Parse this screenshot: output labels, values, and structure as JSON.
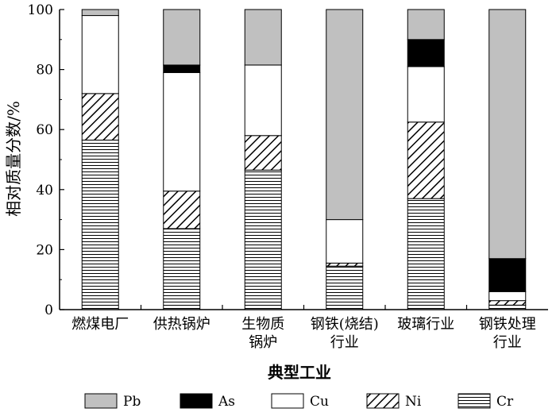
{
  "chart_data": {
    "type": "bar",
    "stacked": true,
    "categories": [
      [
        "燃煤电厂"
      ],
      [
        "供热锅炉"
      ],
      [
        "生物质",
        "锅炉"
      ],
      [
        "钢铁(烧结)",
        "行业"
      ],
      [
        "玻璃行业"
      ],
      [
        "钢铁处理",
        "行业"
      ]
    ],
    "series": [
      {
        "name": "Cr",
        "values": [
          56.5,
          27.0,
          46.5,
          14.5,
          37.0,
          1.5
        ],
        "fill": "hlines"
      },
      {
        "name": "Ni",
        "values": [
          15.5,
          12.5,
          11.5,
          1.0,
          25.5,
          1.5
        ],
        "fill": "diag"
      },
      {
        "name": "Cu",
        "values": [
          26.0,
          39.5,
          23.5,
          14.5,
          18.5,
          3.0
        ],
        "fill": "#ffffff"
      },
      {
        "name": "As",
        "values": [
          0.0,
          2.5,
          0.0,
          0.0,
          9.0,
          11.0
        ],
        "fill": "#000000"
      },
      {
        "name": "Pb",
        "values": [
          2.0,
          18.5,
          18.5,
          70.0,
          10.0,
          83.0
        ],
        "fill": "#c0c0c0"
      }
    ],
    "legend_order": [
      "Pb",
      "As",
      "Cu",
      "Ni",
      "Cr"
    ],
    "xlabel": "典型工业",
    "ylabel": "相对质量分数/%",
    "ylim": [
      0,
      100
    ],
    "yticks": [
      "0",
      "20",
      "40",
      "60",
      "80",
      "100"
    ],
    "legend_position": "bottom",
    "grid": false
  }
}
